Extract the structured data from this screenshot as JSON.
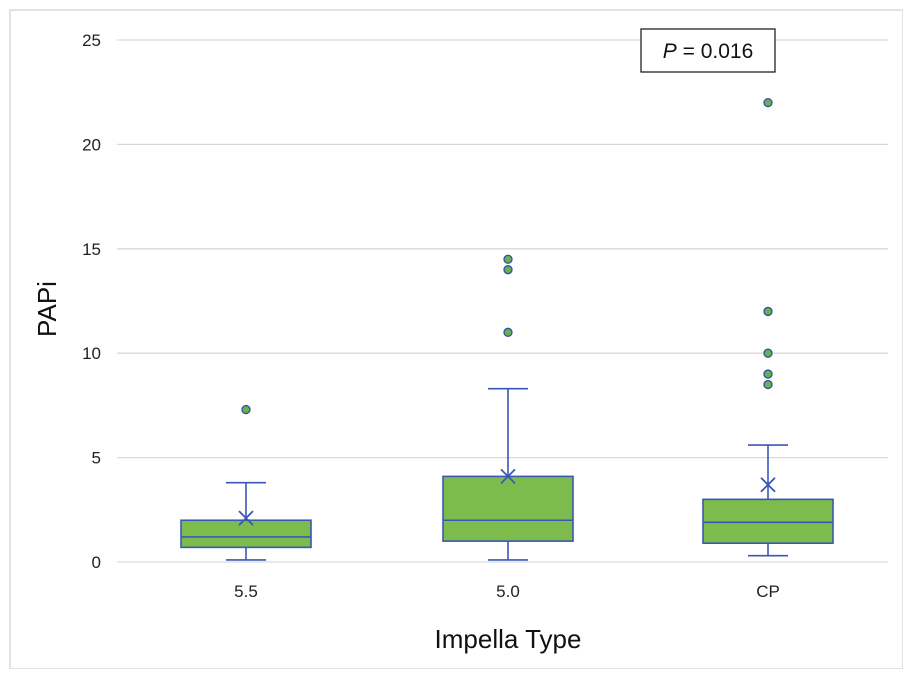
{
  "chart_data": {
    "type": "box",
    "title": "",
    "xlabel": "Impella Type",
    "ylabel": "PAPi",
    "ylim": [
      0,
      25
    ],
    "yticks": [
      "0",
      "5",
      "10",
      "15",
      "20",
      "25"
    ],
    "ytick_values": [
      0,
      5,
      10,
      15,
      20,
      25
    ],
    "grid": true,
    "annotation": {
      "italic": "P",
      "rest": " = 0.016"
    },
    "categories": [
      "5.5",
      "5.0",
      "CP"
    ],
    "boxes": [
      {
        "category": "5.5",
        "whisker_low": 0.1,
        "q1": 0.7,
        "median": 1.2,
        "q3": 2.0,
        "whisker_high": 3.8,
        "mean": 2.1,
        "outliers": [
          7.3
        ]
      },
      {
        "category": "5.0",
        "whisker_low": 0.1,
        "q1": 1.0,
        "median": 2.0,
        "q3": 4.1,
        "whisker_high": 8.3,
        "mean": 4.1,
        "outliers": [
          11.0,
          14.0,
          14.5
        ]
      },
      {
        "category": "CP",
        "whisker_low": 0.3,
        "q1": 0.9,
        "median": 1.9,
        "q3": 3.0,
        "whisker_high": 5.6,
        "mean": 3.7,
        "outliers": [
          8.5,
          9.0,
          10.0,
          12.0,
          22.0
        ]
      }
    ],
    "colors": {
      "box_fill": "#7cbb4c",
      "box_stroke": "#3a57b5",
      "outlier_fill": "#6ab04c",
      "outlier_stroke": "#2f4fa8",
      "grid": "#d9d9d9",
      "frame": "#d9d9d9"
    }
  }
}
